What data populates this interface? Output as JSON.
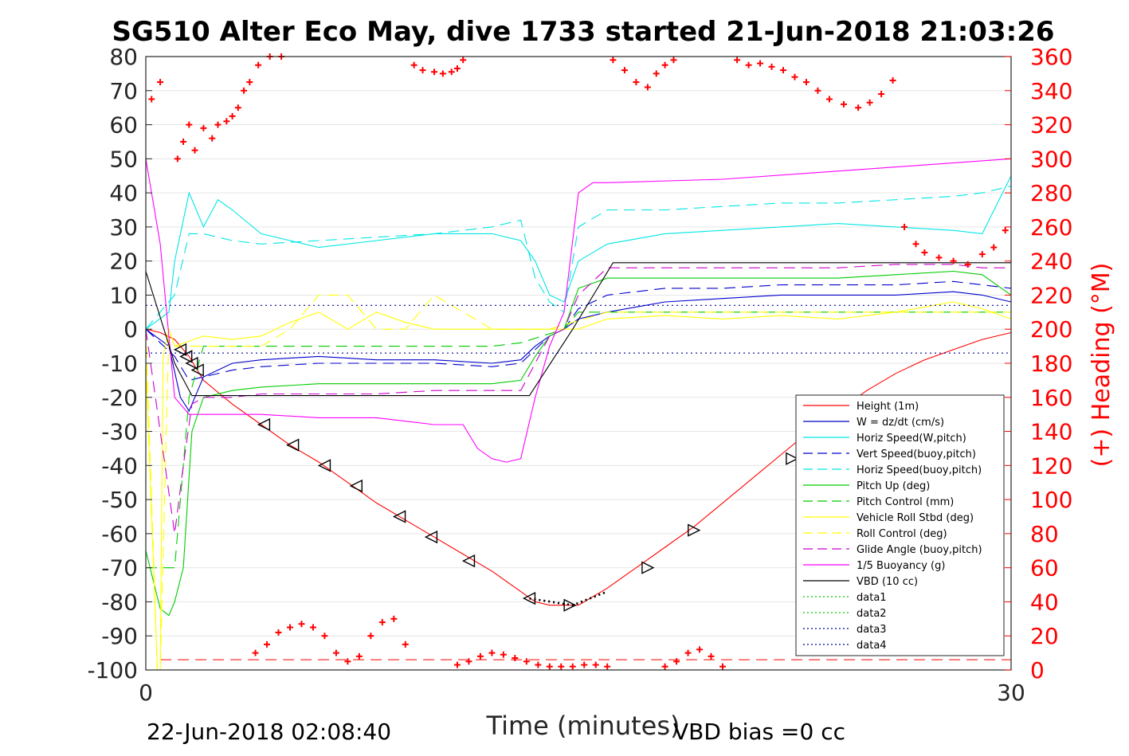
{
  "chart_data": {
    "type": "line",
    "title": "SG510 Alter Eco May, dive 1733 started 21-Jun-2018 21:03:26",
    "xlabel": "Time (minutes)",
    "ylabel_right": "(+) Heading (°M)",
    "xlim": [
      0,
      30
    ],
    "ylim": [
      -100,
      80
    ],
    "ylim_right": [
      0,
      360
    ],
    "x_ticks": [
      "0",
      "30"
    ],
    "y_ticks": [
      "80",
      "70",
      "60",
      "50",
      "40",
      "30",
      "20",
      "10",
      "0",
      "-10",
      "-20",
      "-30",
      "-40",
      "-50",
      "-60",
      "-70",
      "-80",
      "-90",
      "-100"
    ],
    "y_ticks_right": [
      "360",
      "340",
      "320",
      "300",
      "280",
      "260",
      "240",
      "220",
      "200",
      "180",
      "160",
      "140",
      "120",
      "100",
      "80",
      "60",
      "40",
      "20",
      "0"
    ],
    "grid": true,
    "legend_position": "bottom-right",
    "footer_left": "22-Jun-2018 02:08:40",
    "footer_right": "VBD bias =0 cc",
    "colors": {
      "height": "#ff0000",
      "w": "#0000cc",
      "horiz_w": "#00e6e6",
      "vert_buoy": "#0000cc",
      "horiz_buoy": "#00e6e6",
      "pitch_up": "#00cc00",
      "pitch_ctrl": "#00cc00",
      "roll": "#ffff00",
      "roll_ctrl": "#ffff00",
      "glide": "#cc00cc",
      "buoyancy": "#ff00ff",
      "vbd": "#000000",
      "data1": "#00cc00",
      "data2": "#00cc00",
      "data3": "#000099",
      "data4": "#000099",
      "heading": "#ff0000"
    },
    "series": [
      {
        "key": "height",
        "name": "Height (1m)",
        "style": "solid",
        "x": [
          0,
          0.5,
          1,
          1.5,
          2,
          3,
          4,
          5,
          6,
          7,
          8,
          9,
          10,
          11,
          12,
          13,
          13.5,
          14,
          15,
          16,
          17,
          18,
          19,
          20,
          21,
          22,
          23,
          24,
          25,
          26,
          27,
          28,
          29,
          30
        ],
        "y": [
          0,
          -1,
          -3,
          -8,
          -15,
          -22,
          -28,
          -34,
          -39,
          -45,
          -51,
          -56,
          -61,
          -66,
          -71,
          -77,
          -80,
          -81,
          -81,
          -76,
          -70,
          -64,
          -58,
          -51,
          -44,
          -37,
          -30,
          -24,
          -18,
          -13,
          -9,
          -6,
          -3,
          -1
        ]
      },
      {
        "key": "w",
        "name": "W = dz/dt (cm/s)",
        "style": "solid",
        "x": [
          0,
          0.8,
          1.2,
          1.5,
          2,
          3,
          4,
          6,
          8,
          10,
          12,
          13,
          13.5,
          14,
          14.5,
          15,
          16,
          18,
          20,
          22,
          24,
          26,
          28,
          29,
          30
        ],
        "y": [
          0,
          -5,
          -20,
          -24,
          -14,
          -10,
          -9,
          -8,
          -9,
          -9,
          -10,
          -9,
          -5,
          -2,
          0,
          3,
          5,
          8,
          9,
          10,
          10,
          10,
          11,
          10,
          8
        ]
      },
      {
        "key": "horiz_w",
        "name": "Horiz Speed(W,pitch)",
        "style": "solid",
        "x": [
          0,
          0.8,
          1,
          1.5,
          2,
          2.5,
          3,
          4,
          6,
          8,
          10,
          12,
          13,
          13.5,
          14,
          14.5,
          15,
          16,
          18,
          20,
          22,
          24,
          26,
          28,
          29,
          30
        ],
        "y": [
          0,
          5,
          20,
          40,
          30,
          38,
          35,
          28,
          24,
          26,
          28,
          28,
          26,
          20,
          10,
          8,
          20,
          25,
          28,
          29,
          30,
          31,
          30,
          29,
          28,
          45
        ]
      },
      {
        "key": "vert_buoy",
        "name": "Vert Speed(buoy,pitch)",
        "style": "dashed",
        "x": [
          0,
          1,
          1.5,
          2,
          3,
          4,
          6,
          8,
          10,
          12,
          13,
          13.5,
          14,
          14.5,
          15,
          16,
          18,
          20,
          22,
          24,
          26,
          28,
          29,
          30
        ],
        "y": [
          0,
          -8,
          -15,
          -14,
          -12,
          -11,
          -10,
          -10,
          -10,
          -11,
          -10,
          -6,
          -2,
          0,
          6,
          10,
          12,
          12,
          13,
          13,
          13,
          14,
          13,
          12
        ]
      },
      {
        "key": "horiz_buoy",
        "name": "Horiz Speed(buoy,pitch)",
        "style": "dashed",
        "x": [
          0,
          1,
          1.5,
          2,
          3,
          4,
          6,
          8,
          10,
          12,
          13,
          13.5,
          14,
          14.5,
          15,
          16,
          18,
          20,
          22,
          24,
          26,
          28,
          29,
          30
        ],
        "y": [
          0,
          10,
          28,
          28,
          26,
          25,
          26,
          27,
          28,
          30,
          32,
          15,
          8,
          5,
          30,
          35,
          35,
          36,
          37,
          37,
          38,
          39,
          40,
          42
        ]
      },
      {
        "key": "pitch_up",
        "name": "Pitch Up (deg)",
        "style": "solid",
        "x": [
          0,
          0.5,
          0.8,
          1,
          1.3,
          1.6,
          2,
          3,
          4,
          6,
          8,
          10,
          12,
          13,
          13.5,
          14,
          14.5,
          15,
          16,
          18,
          20,
          22,
          24,
          26,
          28,
          29,
          30
        ],
        "y": [
          -65,
          -82,
          -84,
          -80,
          -70,
          -30,
          -20,
          -18,
          -17,
          -16,
          -16,
          -16,
          -16,
          -15,
          -8,
          -2,
          0,
          12,
          15,
          15,
          15,
          15,
          15,
          16,
          17,
          16,
          10
        ]
      },
      {
        "key": "pitch_ctrl",
        "name": "Pitch Control (mm)",
        "style": "dashed",
        "x": [
          0,
          0.5,
          1,
          1.5,
          2,
          4,
          8,
          12,
          13,
          14.5,
          15,
          20,
          25,
          30
        ],
        "y": [
          -70,
          -70,
          -70,
          -20,
          -5,
          -5,
          -5,
          -5,
          -4,
          0,
          5,
          5,
          5,
          5
        ]
      },
      {
        "key": "roll",
        "name": "Vehicle Roll Stbd (deg)",
        "style": "solid",
        "x": [
          0,
          0.4,
          0.5,
          0.6,
          0.8,
          1,
          2,
          3,
          4,
          5,
          6,
          7,
          8,
          9,
          10,
          11,
          12,
          13,
          14,
          15,
          16,
          18,
          20,
          22,
          24,
          26,
          28,
          29,
          30
        ],
        "y": [
          -10,
          -100,
          -100,
          -8,
          0,
          -5,
          -2,
          -3,
          -2,
          2,
          5,
          0,
          5,
          2,
          0,
          0,
          0,
          0,
          0,
          0,
          3,
          4,
          3,
          4,
          3,
          5,
          8,
          6,
          3
        ]
      },
      {
        "key": "roll_ctrl",
        "name": "Roll Control (deg)",
        "style": "dashed",
        "x": [
          0,
          0.4,
          0.5,
          0.8,
          1,
          4,
          5,
          6,
          7,
          8,
          9,
          10,
          12,
          14,
          16,
          20,
          24,
          28,
          30
        ],
        "y": [
          0,
          -100,
          -100,
          0,
          -5,
          -5,
          0,
          10,
          10,
          0,
          0,
          10,
          0,
          0,
          5,
          5,
          5,
          5,
          5
        ]
      },
      {
        "key": "glide",
        "name": "Glide Angle (buoy,pitch)",
        "style": "dashed",
        "x": [
          0,
          1,
          1.3,
          1.6,
          2,
          3,
          4,
          6,
          8,
          10,
          12,
          13,
          13.5,
          14,
          14.5,
          15,
          16,
          18,
          20,
          22,
          24,
          26,
          28,
          29,
          30
        ],
        "y": [
          0,
          -60,
          -40,
          -22,
          -20,
          -20,
          -19,
          -19,
          -19,
          -18,
          -18,
          -18,
          -10,
          -2,
          0,
          10,
          18,
          18,
          18,
          18,
          18,
          19,
          19,
          18,
          18
        ]
      },
      {
        "key": "buoyancy",
        "name": "1/5 Buoyancy (g)",
        "style": "solid",
        "x": [
          0,
          0.5,
          1,
          1.5,
          2,
          4,
          6,
          8,
          9,
          10,
          11,
          11.5,
          12,
          12.5,
          13,
          13.5,
          14,
          14.5,
          15,
          15.5,
          16,
          20,
          25,
          30
        ],
        "y": [
          50,
          25,
          -20,
          -25,
          -25,
          -25,
          -26,
          -26,
          -27,
          -28,
          -28,
          -35,
          -38,
          -39,
          -38,
          -20,
          -5,
          5,
          40,
          43,
          43,
          44,
          47,
          50
        ]
      },
      {
        "key": "vbd",
        "name": "VBD (10 cc)",
        "style": "solid",
        "x": [
          0,
          1,
          1.6,
          3,
          6,
          9,
          12,
          13.3,
          14.8,
          16.2,
          20,
          25,
          30
        ],
        "y": [
          17,
          -10,
          -19.5,
          -19.5,
          -19.5,
          -19.5,
          -19.5,
          -19.5,
          0,
          19.5,
          19.5,
          19.5,
          19.5
        ]
      },
      {
        "key": "data1",
        "name": "data1",
        "style": "dotted",
        "x": [
          13.3,
          14.8,
          16
        ],
        "y": [
          -79,
          -81,
          -77
        ]
      },
      {
        "key": "data2",
        "name": "data2",
        "style": "dotted",
        "x": [
          13.3,
          14.8,
          16
        ],
        "y": [
          -79,
          -81,
          -77
        ]
      },
      {
        "key": "data3",
        "name": "data3",
        "style": "dotted",
        "x": [
          0,
          30
        ],
        "y": [
          7,
          7
        ]
      },
      {
        "key": "data4",
        "name": "data4",
        "style": "dotted",
        "x": [
          0,
          30
        ],
        "y": [
          -7,
          -7
        ]
      }
    ],
    "heading_points": {
      "x": [
        0.2,
        0.5,
        1.1,
        1.3,
        1.5,
        1.7,
        2,
        2.3,
        2.5,
        2.8,
        3,
        3.2,
        3.4,
        3.6,
        3.9,
        4.3,
        4.7,
        9.3,
        9.6,
        10,
        10.3,
        10.6,
        10.8,
        11.0,
        16.2,
        16.6,
        17,
        17.4,
        17.7,
        18,
        18.3,
        20.5,
        20.9,
        21.3,
        21.7,
        22.1,
        22.5,
        22.9,
        23.3,
        23.7,
        24.2,
        24.7,
        25.1,
        25.5,
        25.9,
        26.3,
        26.7,
        27,
        27.5,
        28,
        28.5,
        29,
        29.4,
        29.8
      ],
      "y": [
        335,
        345,
        300,
        310,
        320,
        305,
        318,
        312,
        320,
        322,
        325,
        330,
        340,
        345,
        355,
        360,
        360,
        355,
        352,
        351,
        350,
        351,
        353,
        358,
        358,
        352,
        345,
        342,
        350,
        355,
        358,
        358,
        355,
        356,
        354,
        352,
        348,
        345,
        340,
        335,
        332,
        330,
        333,
        338,
        346,
        260,
        250,
        245,
        242,
        240,
        238,
        244,
        248,
        258
      ],
      "bottom": {
        "x": [
          3.8,
          4.2,
          4.6,
          5,
          5.4,
          5.8,
          6.2,
          6.6,
          7,
          7.4,
          7.8,
          8.2,
          8.6,
          9,
          10.8,
          11.2,
          11.6,
          12,
          12.4,
          12.8,
          13.2,
          13.6,
          14,
          14.4,
          14.8,
          15.2,
          15.6,
          16,
          18,
          18.4,
          18.8,
          19.2,
          19.6,
          20
        ],
        "y": [
          10,
          15,
          22,
          25,
          27,
          25,
          20,
          10,
          5,
          8,
          20,
          28,
          30,
          15,
          3,
          5,
          8,
          10,
          9,
          7,
          5,
          3,
          2,
          2,
          2,
          3,
          3,
          2,
          2,
          5,
          10,
          12,
          8,
          2
        ]
      }
    },
    "markers_down": {
      "x": [
        1.2,
        1.4,
        1.6,
        1.8,
        4.1,
        5.1,
        6.2,
        7.3,
        8.8,
        9.9,
        11.2,
        13.3
      ],
      "y": [
        -6,
        -8,
        -10,
        -12,
        -28,
        -34,
        -40,
        -46,
        -55,
        -61,
        -68,
        -79
      ]
    },
    "markers_up": {
      "x": [
        14.7,
        17.4,
        19.0,
        22.4
      ],
      "y": [
        -81,
        -70,
        -59,
        -38
      ]
    },
    "reference_line": {
      "y": -97
    }
  }
}
